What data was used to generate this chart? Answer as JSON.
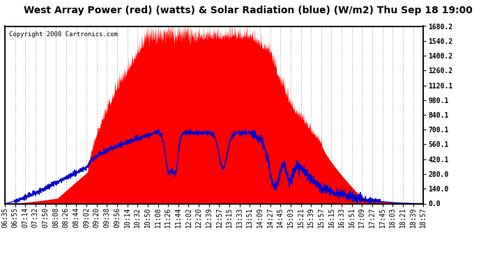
{
  "title": "West Array Power (red) (watts) & Solar Radiation (blue) (W/m2) Thu Sep 18 19:00",
  "copyright": "Copyright 2008 Cartronics.com",
  "ylabel_right_ticks": [
    0.0,
    140.0,
    280.0,
    420.1,
    560.1,
    700.1,
    840.1,
    980.1,
    1120.1,
    1260.2,
    1400.2,
    1540.2,
    1680.2
  ],
  "ylim": [
    0,
    1680.2
  ],
  "background_color": "#ffffff",
  "grid_color": "#bbbbbb",
  "red_color": "#ff0000",
  "blue_color": "#0000cc",
  "title_fontsize": 10,
  "tick_fontsize": 7,
  "copyright_fontsize": 6.5,
  "x_tick_labels": [
    "06:35",
    "06:55",
    "07:14",
    "07:32",
    "07:50",
    "08:08",
    "08:26",
    "08:44",
    "09:02",
    "09:20",
    "09:38",
    "09:56",
    "10:14",
    "10:32",
    "10:50",
    "11:08",
    "11:26",
    "11:44",
    "12:02",
    "12:20",
    "12:39",
    "12:57",
    "13:15",
    "13:33",
    "13:51",
    "14:09",
    "14:27",
    "14:45",
    "15:03",
    "15:21",
    "15:39",
    "15:57",
    "16:15",
    "16:33",
    "16:51",
    "17:09",
    "17:27",
    "17:45",
    "18:03",
    "18:21",
    "18:39",
    "18:57"
  ]
}
